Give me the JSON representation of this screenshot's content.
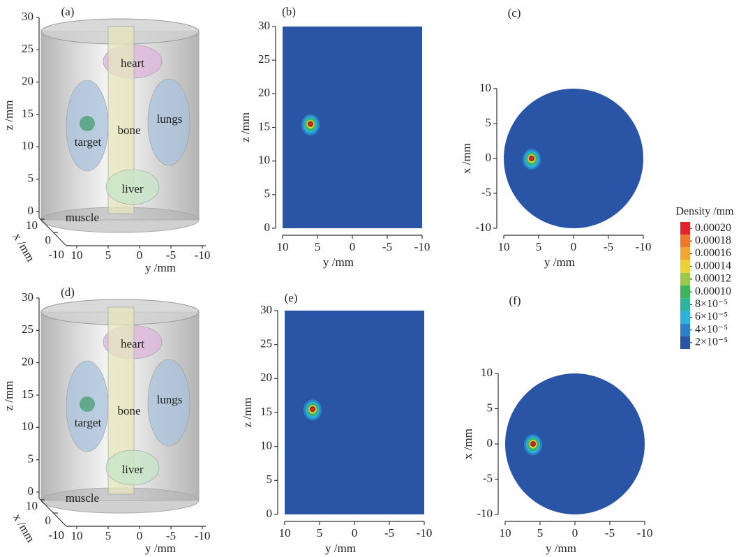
{
  "chart_data": [
    {
      "type": "volume",
      "panel_label": "(a)",
      "zlabel": "z /mm",
      "ylabel": "y /mm",
      "xlabel": "x /mm",
      "zlim": [
        0,
        30
      ],
      "zticks": [
        0,
        5,
        10,
        15,
        20,
        25,
        30
      ],
      "ylim": [
        10,
        -10
      ],
      "yticks": [
        10,
        5,
        0,
        -5,
        -10
      ],
      "xlim": [
        10,
        -10
      ],
      "xticks": [
        10,
        0,
        -10
      ],
      "organs": [
        {
          "label": "heart",
          "color": "#dcb4dc"
        },
        {
          "label": "lungs",
          "color": "#a9c3dc"
        },
        {
          "label": "target",
          "color": "#a9c3dc"
        },
        {
          "label": "bone",
          "color": "#e6e6bc"
        },
        {
          "label": "liver",
          "color": "#c6e6c6"
        },
        {
          "label": "muscle",
          "color": "#c8c8c8"
        }
      ]
    },
    {
      "type": "heatmap",
      "panel_label": "(b)",
      "shape": "rect",
      "xlabel": "y /mm",
      "ylabel": "z /mm",
      "xlim": [
        10,
        -10
      ],
      "ylim": [
        0,
        30
      ],
      "xticks": [
        10,
        5,
        0,
        -5,
        -10
      ],
      "yticks": [
        0,
        5,
        10,
        15,
        20,
        25,
        30
      ],
      "color": "#2a55a6",
      "hotspot": {
        "x": 6,
        "y": 15.5
      }
    },
    {
      "type": "heatmap",
      "panel_label": "(c)",
      "shape": "circle",
      "xlabel": "y /mm",
      "ylabel": "x /mm",
      "xlim": [
        10,
        -10
      ],
      "ylim": [
        -10,
        10
      ],
      "xticks": [
        10,
        5,
        0,
        -5,
        -10
      ],
      "yticks": [
        -10,
        -5,
        0,
        5,
        10
      ],
      "color": "#2a55a6",
      "hotspot": {
        "x": 6,
        "y": 0
      }
    },
    {
      "type": "volume",
      "panel_label": "(d)",
      "zlabel": "z /mm",
      "ylabel": "y /mm",
      "xlabel": "x /mm",
      "zlim": [
        0,
        30
      ],
      "zticks": [
        0,
        5,
        10,
        15,
        20,
        25,
        30
      ],
      "ylim": [
        10,
        -10
      ],
      "yticks": [
        10,
        5,
        0,
        -5,
        -10
      ],
      "xlim": [
        10,
        -10
      ],
      "xticks": [
        10,
        0,
        -10
      ],
      "organs": [
        {
          "label": "heart",
          "color": "#dcb4dc"
        },
        {
          "label": "lungs",
          "color": "#a9c3dc"
        },
        {
          "label": "target",
          "color": "#a9c3dc"
        },
        {
          "label": "bone",
          "color": "#e6e6bc"
        },
        {
          "label": "liver",
          "color": "#c6e6c6"
        },
        {
          "label": "muscle",
          "color": "#c8c8c8"
        }
      ]
    },
    {
      "type": "heatmap",
      "panel_label": "(e)",
      "shape": "rect",
      "xlabel": "y /mm",
      "ylabel": "z /mm",
      "xlim": [
        10,
        -10
      ],
      "ylim": [
        0,
        30
      ],
      "xticks": [
        10,
        5,
        0,
        -5,
        -10
      ],
      "yticks": [
        0,
        5,
        10,
        15,
        20,
        25,
        30
      ],
      "color": "#2a55a6",
      "hotspot": {
        "x": 6,
        "y": 15.5
      }
    },
    {
      "type": "heatmap",
      "panel_label": "(f)",
      "shape": "circle",
      "xlabel": "y /mm",
      "ylabel": "x /mm",
      "xlim": [
        10,
        -10
      ],
      "ylim": [
        -10,
        10
      ],
      "xticks": [
        10,
        5,
        0,
        -5,
        -10
      ],
      "yticks": [
        -10,
        -5,
        0,
        5,
        10
      ],
      "color": "#2a55a6",
      "hotspot": {
        "x": 6,
        "y": 0
      }
    }
  ],
  "colorbar": {
    "title": "Density /mm",
    "ticks": [
      {
        "value": 0.0002,
        "label": "0.00020"
      },
      {
        "value": 0.00018,
        "label": "0.00018"
      },
      {
        "value": 0.00016,
        "label": "0.00016"
      },
      {
        "value": 0.00014,
        "label": "0.00014"
      },
      {
        "value": 0.00012,
        "label": "0.00012"
      },
      {
        "value": 0.0001,
        "label": "0.00010"
      },
      {
        "value": 8e-05,
        "label": "8×10⁻⁵"
      },
      {
        "value": 6e-05,
        "label": "6×10⁻⁵"
      },
      {
        "value": 4e-05,
        "label": "4×10⁻⁵"
      },
      {
        "value": 2e-05,
        "label": "2×10⁻⁵"
      }
    ],
    "colors": [
      "#e4242a",
      "#f0782a",
      "#f4a632",
      "#ecd232",
      "#9cc84a",
      "#3cb45a",
      "#2cb49c",
      "#28b4dc",
      "#2a82c8",
      "#2a55a6"
    ]
  }
}
